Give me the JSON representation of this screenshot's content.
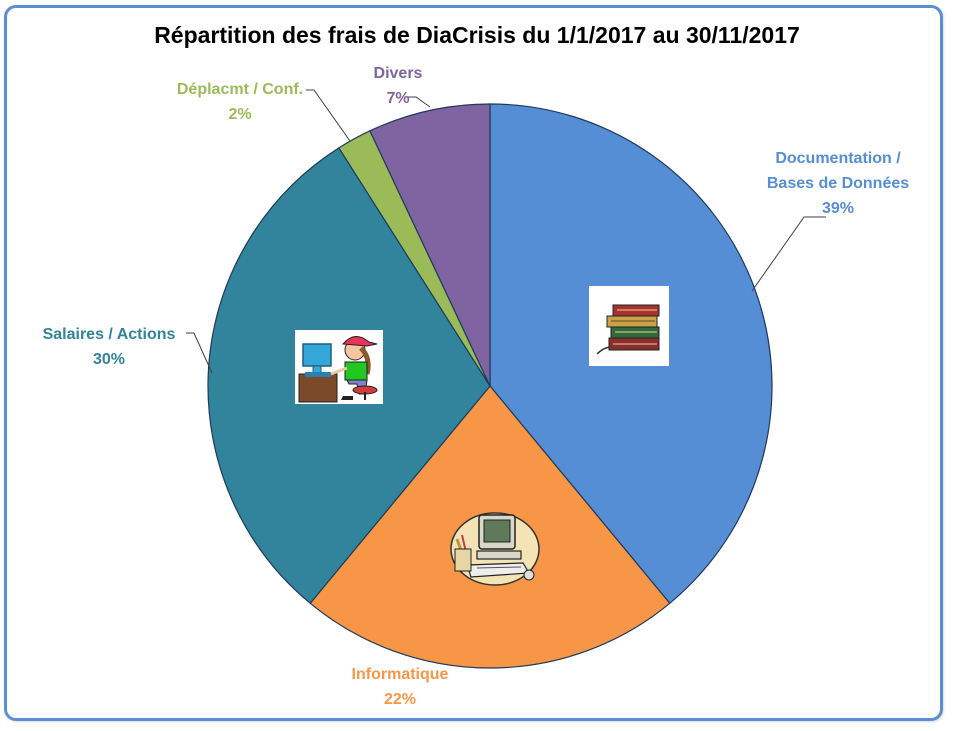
{
  "chart_data": {
    "type": "pie",
    "title": "Répartition des frais de DiaCrisis du 1/1/2017 au 30/11/2017",
    "slices": [
      {
        "label": "Documentation /",
        "label2": "Bases de Données",
        "pct_label": "39%",
        "value": 39,
        "color": "#558ed5",
        "icon": "books-icon"
      },
      {
        "label": "Informatique",
        "label2": "",
        "pct_label": "22%",
        "value": 22,
        "color": "#f79646",
        "icon": "computer-icon"
      },
      {
        "label": "Salaires / Actions",
        "label2": "",
        "pct_label": "30%",
        "value": 30,
        "color": "#31849b",
        "icon": "person-at-computer-icon"
      },
      {
        "label": "Déplacmt / Conf.",
        "label2": "",
        "pct_label": "2%",
        "value": 2,
        "color": "#9bbb59",
        "icon": null
      },
      {
        "label": "Divers",
        "label2": "",
        "pct_label": "7%",
        "value": 7,
        "color": "#8064a2",
        "icon": null
      }
    ],
    "label_colors": [
      "#558ed5",
      "#f79646",
      "#31849b",
      "#9bbb59",
      "#8064a2"
    ],
    "legend": "none",
    "start_angle": "12 o'clock",
    "direction": "clockwise"
  }
}
